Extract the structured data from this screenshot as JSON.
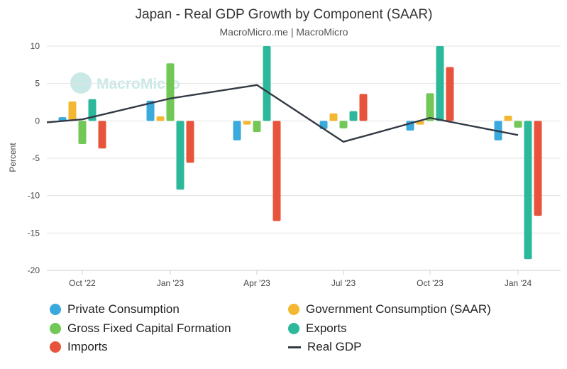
{
  "chart_data": {
    "type": "bar",
    "title": "Japan - Real GDP Growth by Component (SAAR)",
    "subtitle": "MacroMicro.me | MacroMicro",
    "watermark": "MacroMicro",
    "ylabel": "Percent",
    "xlabel": "",
    "ylim": [
      -20,
      10
    ],
    "yticks": [
      -20,
      -15,
      -10,
      -5,
      0,
      5,
      10
    ],
    "categories": [
      "Oct '22",
      "Jan '23",
      "Apr '23",
      "Jul '23",
      "Oct '23",
      "Jan '24"
    ],
    "series": [
      {
        "name": "Private Consumption",
        "kind": "bar",
        "color": "#3aa9dc",
        "values": [
          0.5,
          2.7,
          -2.6,
          -1.1,
          -1.3,
          -2.6
        ]
      },
      {
        "name": "Government Consumption (SAAR)",
        "kind": "bar",
        "color": "#f4b731",
        "values": [
          2.6,
          0.6,
          -0.5,
          1.0,
          -0.5,
          0.7
        ]
      },
      {
        "name": "Gross Fixed Capital Formation",
        "kind": "bar",
        "color": "#71c856",
        "values": [
          -3.1,
          7.7,
          -1.5,
          -1.0,
          3.7,
          -0.9
        ]
      },
      {
        "name": "Exports",
        "kind": "bar",
        "color": "#2cb89a",
        "values": [
          2.9,
          -9.2,
          10.0,
          1.3,
          10.0,
          -18.5
        ]
      },
      {
        "name": "Imports",
        "kind": "bar",
        "color": "#e8533c",
        "values": [
          -3.7,
          -5.6,
          -13.4,
          3.6,
          7.2,
          -12.7
        ]
      },
      {
        "name": "Real GDP",
        "kind": "line",
        "color": "#333a44",
        "values": [
          0.2,
          3.0,
          4.8,
          -2.8,
          0.4,
          -1.9
        ]
      }
    ],
    "line_start_value": -0.2
  }
}
